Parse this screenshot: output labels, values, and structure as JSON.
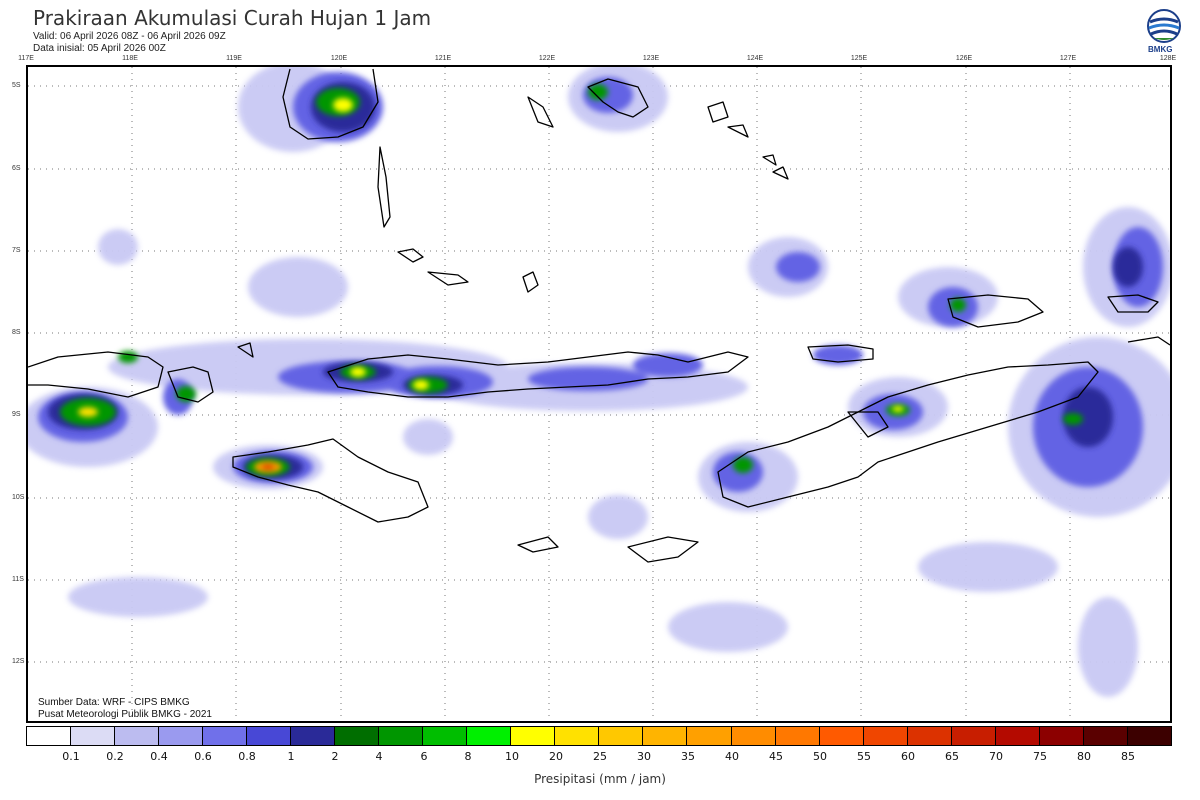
{
  "header": {
    "title": "Prakiraan Akumulasi Curah Hujan 1 Jam",
    "valid": "Valid: 06 April 2026 08Z - 06 April 2026 09Z",
    "initial": "Data inisial: 05 April 2026 00Z"
  },
  "logo": {
    "text": "BMKG",
    "icon": "bmkg-logo-icon"
  },
  "map": {
    "lon_labels": [
      "117E",
      "118E",
      "119E",
      "120E",
      "121E",
      "122E",
      "123E",
      "124E",
      "125E",
      "126E",
      "127E",
      "128E"
    ],
    "lat_labels": [
      "5S",
      "6S",
      "7S",
      "8S",
      "9S",
      "10S",
      "11S",
      "12S"
    ],
    "colors": {
      "coast": "#000000",
      "grid": "#666666"
    }
  },
  "credits": {
    "source": "Sumber Data: WRF - CIPS BMKG",
    "center": "Pusat Meteorologi Publik BMKG - 2021"
  },
  "colorbar": {
    "labels": [
      "0.1",
      "0.2",
      "0.4",
      "0.6",
      "0.8",
      "1",
      "2",
      "4",
      "6",
      "8",
      "10",
      "20",
      "25",
      "30",
      "35",
      "40",
      "45",
      "50",
      "55",
      "60",
      "65",
      "70",
      "75",
      "80",
      "85"
    ],
    "colors": [
      "#ffffff",
      "#dcdcf5",
      "#bcbcf0",
      "#9a9aef",
      "#7070ea",
      "#4848d6",
      "#2a2a98",
      "#006e00",
      "#009600",
      "#00be00",
      "#00f000",
      "#ffff00",
      "#ffe100",
      "#ffc800",
      "#ffb400",
      "#ffa000",
      "#ff8c00",
      "#ff7800",
      "#ff5a00",
      "#f04600",
      "#dc3200",
      "#c81e00",
      "#b40a00",
      "#8c0000",
      "#5a0000",
      "#3c0000"
    ],
    "unit": "Presipitasi (mm / jam)"
  }
}
